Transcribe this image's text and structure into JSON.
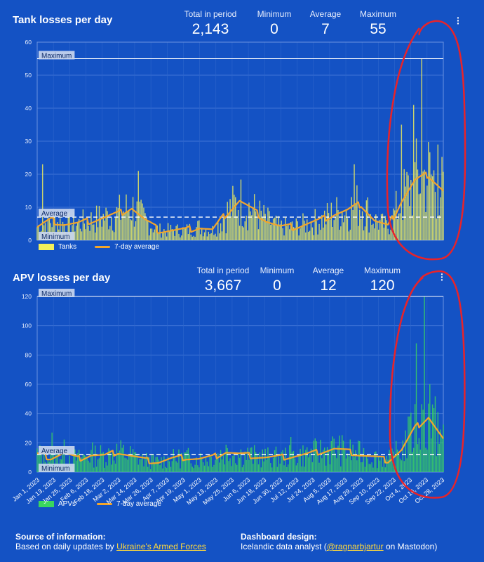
{
  "tank": {
    "title": "Tank losses per day",
    "stats": [
      {
        "label": "Total in period",
        "value": "2,143"
      },
      {
        "label": "Minimum",
        "value": "0"
      },
      {
        "label": "Average",
        "value": "7"
      },
      {
        "label": "Maximum",
        "value": "55"
      }
    ],
    "legend_bars": "Tanks",
    "legend_line": "7-day average",
    "ref_maximum": "Maximum",
    "ref_average": "Average",
    "ref_minimum": "Minimum"
  },
  "apv": {
    "title": "APV losses per day",
    "stats": [
      {
        "label": "Total in period",
        "value": "3,667"
      },
      {
        "label": "Minimum",
        "value": "0"
      },
      {
        "label": "Average",
        "value": "12"
      },
      {
        "label": "Maximum",
        "value": "120"
      }
    ],
    "legend_bars": "APVs",
    "legend_line": "7-day average",
    "ref_maximum": "Maximum",
    "ref_average": "Average",
    "ref_minimum": "Minimum"
  },
  "footer": {
    "source_heading": "Source of information:",
    "source_text": "Based on daily updates by ",
    "source_link": "Ukraine's Armed Forces",
    "design_heading": "Dashboard design:",
    "design_text_pre": "Icelandic data analyst (",
    "design_link": "@ragnarbjartur",
    "design_text_post": " on Mastodon)"
  },
  "colors": {
    "background": "#1452c4",
    "tank_bars": "#f2ef5a",
    "apv_bars": "#3ad65e",
    "avg_line": "#f2a52c",
    "annotation": "#e8232a"
  },
  "chart_data": [
    {
      "type": "bar",
      "title": "Tank losses per day",
      "series": [
        {
          "name": "Tanks",
          "kind": "bar"
        },
        {
          "name": "7-day average",
          "kind": "line"
        }
      ],
      "ylim": [
        0,
        60
      ],
      "yticks": [
        0,
        10,
        20,
        30,
        40,
        50,
        60
      ],
      "reference_lines": {
        "Maximum": 55,
        "Average": 7,
        "Minimum": 0
      },
      "avg_x": [
        0,
        10,
        20,
        30,
        40,
        50,
        60,
        70,
        80,
        90,
        100,
        110,
        120,
        130,
        140,
        150,
        160,
        170,
        180,
        190,
        200,
        210,
        220,
        230,
        240,
        250,
        260,
        270,
        280,
        290,
        301
      ],
      "avg_y": [
        4,
        6,
        5,
        5,
        6,
        7,
        8,
        10,
        6,
        3,
        3,
        3,
        4,
        3,
        8,
        12,
        9,
        6,
        4,
        4,
        5,
        6,
        8,
        9,
        11,
        6,
        4,
        12,
        18,
        20,
        15
      ],
      "spikes": [
        {
          "x": 285,
          "y": 55
        },
        {
          "x": 279,
          "y": 41
        },
        {
          "x": 270,
          "y": 35
        },
        {
          "x": 297,
          "y": 29
        },
        {
          "x": 4,
          "y": 23
        },
        {
          "x": 75,
          "y": 21
        },
        {
          "x": 235,
          "y": 23
        }
      ]
    },
    {
      "type": "bar",
      "title": "APV losses per day",
      "series": [
        {
          "name": "APVs",
          "kind": "bar"
        },
        {
          "name": "7-day average",
          "kind": "line"
        }
      ],
      "ylim": [
        0,
        120
      ],
      "yticks": [
        0,
        20,
        40,
        60,
        80,
        100,
        120
      ],
      "reference_lines": {
        "Maximum": 120,
        "Average": 12,
        "Minimum": 0
      },
      "x_tick_labels": [
        "Jan 1, 2023",
        "Jan 13, 2023",
        "Jan 25, 2023",
        "Feb 6, 2023",
        "Feb 18, 2023",
        "Mar 2, 2023",
        "Mar 14, 2023",
        "Mar 26, 2023",
        "Apr 7, 2023",
        "Apr 19, 2023",
        "May 1, 2023",
        "May 13, 2023",
        "May 25, 2023",
        "Jun 6, 2023",
        "Jun 18, 2023",
        "Jun 30, 2023",
        "Jul 12, 2023",
        "Jul 24, 2023",
        "Aug 5, 2023",
        "Aug 17, 2023",
        "Aug 29, 2023",
        "Sep 10, 2023",
        "Sep 22, 2023",
        "Oct 4, 2023",
        "Oct 16, 2023",
        "Oct 28, 2023"
      ],
      "avg_x": [
        0,
        10,
        20,
        30,
        40,
        50,
        60,
        70,
        80,
        90,
        100,
        110,
        120,
        130,
        140,
        150,
        160,
        170,
        180,
        190,
        200,
        210,
        220,
        230,
        240,
        250,
        260,
        270,
        280,
        290,
        301
      ],
      "avg_y": [
        12,
        10,
        13,
        9,
        12,
        11,
        14,
        11,
        8,
        7,
        9,
        10,
        9,
        10,
        14,
        12,
        11,
        10,
        10,
        11,
        12,
        14,
        16,
        14,
        12,
        10,
        8,
        15,
        30,
        38,
        22
      ],
      "spikes": [
        {
          "x": 287,
          "y": 120
        },
        {
          "x": 281,
          "y": 88
        },
        {
          "x": 291,
          "y": 60
        },
        {
          "x": 276,
          "y": 38
        },
        {
          "x": 297,
          "y": 41
        },
        {
          "x": 11,
          "y": 27
        },
        {
          "x": 188,
          "y": 24
        }
      ]
    }
  ]
}
